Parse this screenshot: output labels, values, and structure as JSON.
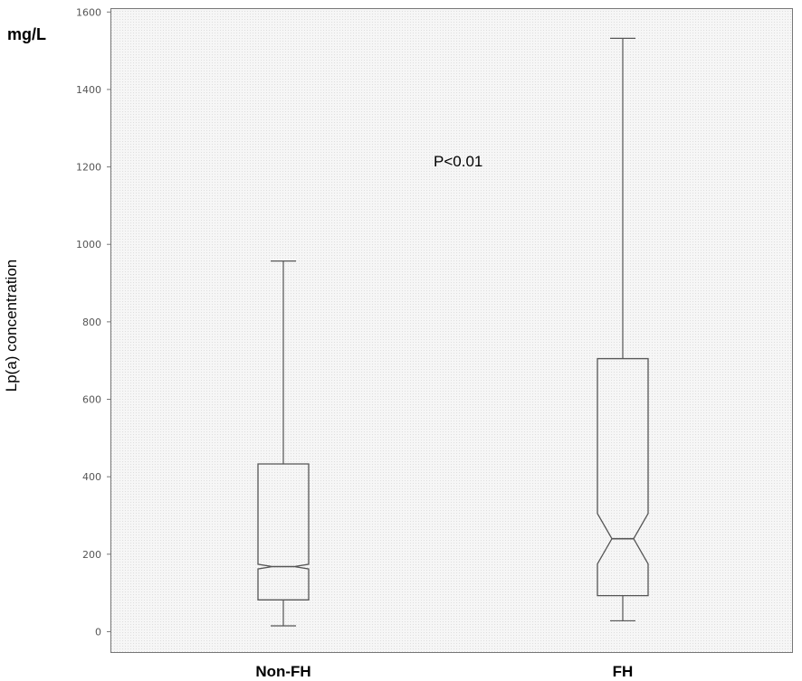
{
  "chart_data": {
    "type": "boxplot",
    "notched": true,
    "ylabel": "Lp(a) concentration",
    "unit": "mg/L",
    "annotation": "P<0.01",
    "ylim": [
      -55,
      1610
    ],
    "yticks": [
      0,
      200,
      400,
      600,
      800,
      1000,
      1200,
      1400,
      1600
    ],
    "grid": false,
    "categories": [
      "Non-FH",
      "FH"
    ],
    "boxes": [
      {
        "name": "Non-FH",
        "whisker_low": 15,
        "q1": 82,
        "median": 168,
        "notch_low": 162,
        "notch_high": 174,
        "q3": 433,
        "whisker_high": 957
      },
      {
        "name": "FH",
        "whisker_low": 28,
        "q1": 93,
        "median": 240,
        "notch_low": 175,
        "notch_high": 305,
        "q3": 705,
        "whisker_high": 1532
      }
    ],
    "colors": {
      "plot_background": "#f4f4f4",
      "box_stroke": "#555555",
      "frame": "#777777"
    }
  }
}
